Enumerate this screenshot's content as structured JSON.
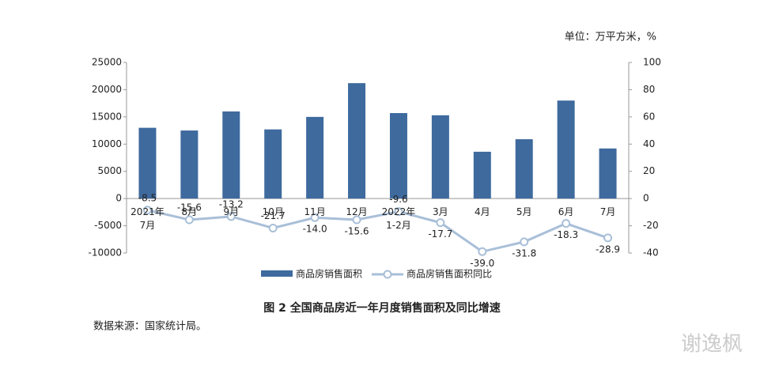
{
  "chart_data": {
    "type": "bar_line",
    "title": "图 2 全国商品房近一年月度销售面积及同比增速",
    "unit_note": "单位：万平方米，%",
    "source": "数据来源：国家统计局。",
    "watermark": "谢逸枫",
    "categories": [
      "2021年\n7月",
      "8月",
      "9月",
      "10月",
      "11月",
      "12月",
      "2022年\n1-2月",
      "3月",
      "4月",
      "5月",
      "6月",
      "7月"
    ],
    "series": [
      {
        "name": "商品房销售面积",
        "color": "#3e6a9e",
        "values": [
          13000,
          12500,
          16000,
          12700,
          15000,
          21200,
          15700,
          15300,
          8600,
          10900,
          18000,
          9200
        ]
      },
      {
        "name": "商品房销售面积同比",
        "color": "#a9bfd8",
        "axis": "y2",
        "values": [
          -8.5,
          -15.6,
          -13.2,
          -21.7,
          -14.0,
          -15.6,
          -9.6,
          -17.7,
          -39.0,
          -31.8,
          -18.3,
          -28.9
        ],
        "value_labels": [
          "-8.5",
          "-15.6",
          "-13.2",
          "-21.7",
          "-14.0",
          "-15.6",
          "-9.6",
          "-17.7",
          "-39.0",
          "-31.8",
          "-18.3",
          "-28.9"
        ]
      }
    ],
    "ylim": [
      -10000,
      25000
    ],
    "yticks": [
      -10000,
      -5000,
      0,
      5000,
      10000,
      15000,
      20000,
      25000
    ],
    "y2lim": [
      -40,
      100
    ],
    "y2ticks": [
      -40,
      -20,
      0,
      20,
      40,
      60,
      80,
      100
    ]
  }
}
